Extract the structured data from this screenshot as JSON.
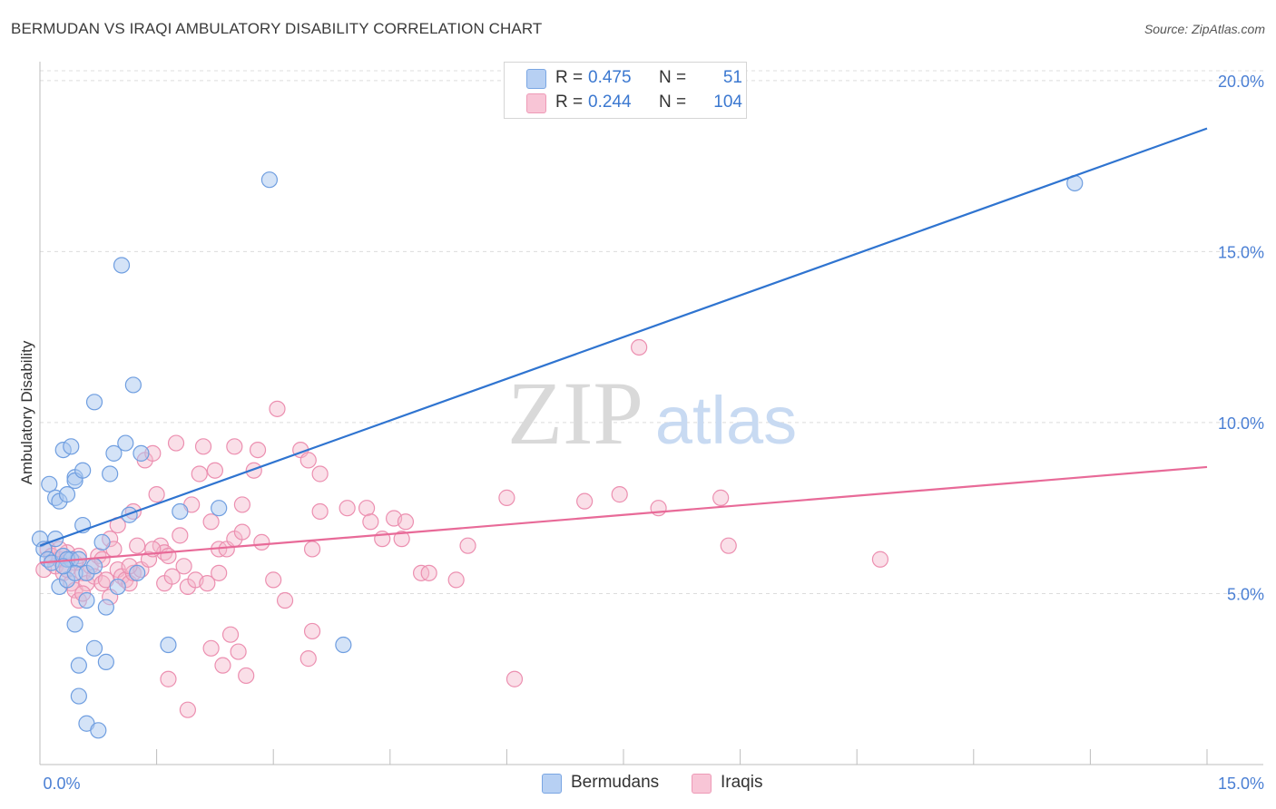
{
  "header": {
    "title": "BERMUDAN VS IRAQI AMBULATORY DISABILITY CORRELATION CHART",
    "source": "Source: ZipAtlas.com"
  },
  "watermark": {
    "zip": "ZIP",
    "atlas": "atlas"
  },
  "legend": {
    "rows": [
      {
        "r_label": "R =",
        "r_value": "0.475",
        "n_label": "N =",
        "n_value": "51"
      },
      {
        "r_label": "R =",
        "r_value": "0.244",
        "n_label": "N =",
        "n_value": "104"
      }
    ]
  },
  "bottom_legend": {
    "items": [
      "Bermudans",
      "Iraqis"
    ]
  },
  "colors": {
    "bermudan_fill": "#a9c7f0",
    "bermudan_stroke": "#6f9ee0",
    "bermudan_line": "#2f74d0",
    "iraqi_fill": "#f5b8cc",
    "iraqi_stroke": "#ec8fb0",
    "iraqi_line": "#e86a98",
    "tick_label": "#4a7fd4"
  },
  "chart_data": {
    "type": "scatter",
    "title": "BERMUDAN VS IRAQI AMBULATORY DISABILITY CORRELATION CHART",
    "xlabel": "",
    "ylabel": "Ambulatory Disability",
    "xlim": [
      0,
      15
    ],
    "ylim": [
      0,
      20.5
    ],
    "x_tick_labels": [
      {
        "v": 0,
        "t": "0.0%"
      },
      {
        "v": 15,
        "t": "15.0%"
      }
    ],
    "y_tick_labels": [
      {
        "v": 5,
        "t": "5.0%"
      },
      {
        "v": 10,
        "t": "10.0%"
      },
      {
        "v": 15,
        "t": "15.0%"
      },
      {
        "v": 20,
        "t": "20.0%"
      }
    ],
    "grid": true,
    "legend_position": "top-center",
    "series": [
      {
        "name": "Bermudans",
        "trend": [
          [
            0,
            6.4
          ],
          [
            15,
            18.6
          ]
        ],
        "points": [
          [
            0.0,
            6.6
          ],
          [
            0.05,
            6.3
          ],
          [
            0.1,
            6.0
          ],
          [
            0.15,
            5.9
          ],
          [
            0.2,
            6.6
          ],
          [
            0.25,
            5.2
          ],
          [
            0.3,
            6.1
          ],
          [
            0.12,
            8.2
          ],
          [
            0.2,
            7.8
          ],
          [
            0.25,
            7.7
          ],
          [
            0.3,
            9.2
          ],
          [
            0.35,
            7.9
          ],
          [
            0.35,
            5.4
          ],
          [
            0.4,
            6.0
          ],
          [
            0.35,
            6.0
          ],
          [
            0.45,
            8.4
          ],
          [
            0.45,
            8.3
          ],
          [
            0.4,
            9.3
          ],
          [
            0.5,
            6.0
          ],
          [
            0.55,
            7.0
          ],
          [
            0.45,
            5.6
          ],
          [
            0.45,
            4.1
          ],
          [
            0.5,
            2.0
          ],
          [
            0.5,
            2.9
          ],
          [
            0.55,
            8.6
          ],
          [
            0.6,
            5.6
          ],
          [
            0.6,
            4.8
          ],
          [
            0.6,
            1.2
          ],
          [
            0.7,
            3.4
          ],
          [
            0.7,
            10.6
          ],
          [
            0.75,
            1.0
          ],
          [
            0.8,
            6.5
          ],
          [
            0.85,
            4.6
          ],
          [
            0.85,
            3.0
          ],
          [
            0.9,
            8.5
          ],
          [
            0.95,
            9.1
          ],
          [
            1.0,
            5.2
          ],
          [
            1.05,
            14.6
          ],
          [
            1.1,
            9.4
          ],
          [
            1.15,
            7.3
          ],
          [
            1.2,
            11.1
          ],
          [
            1.25,
            5.6
          ],
          [
            1.3,
            9.1
          ],
          [
            1.65,
            3.5
          ],
          [
            1.8,
            7.4
          ],
          [
            2.3,
            7.5
          ],
          [
            2.95,
            17.1
          ],
          [
            3.9,
            3.5
          ],
          [
            13.3,
            17.0
          ],
          [
            0.3,
            5.8
          ],
          [
            0.7,
            5.8
          ]
        ]
      },
      {
        "name": "Iraqis",
        "trend": [
          [
            0,
            5.9
          ],
          [
            15,
            8.7
          ]
        ],
        "points": [
          [
            0.05,
            5.7
          ],
          [
            0.1,
            6.3
          ],
          [
            0.15,
            6.1
          ],
          [
            0.2,
            5.8
          ],
          [
            0.25,
            6.0
          ],
          [
            0.3,
            5.6
          ],
          [
            0.35,
            6.2
          ],
          [
            0.4,
            5.3
          ],
          [
            0.45,
            5.9
          ],
          [
            0.45,
            5.1
          ],
          [
            0.5,
            6.1
          ],
          [
            0.55,
            5.6
          ],
          [
            0.5,
            4.8
          ],
          [
            0.6,
            5.3
          ],
          [
            0.65,
            5.8
          ],
          [
            0.7,
            5.5
          ],
          [
            0.75,
            6.1
          ],
          [
            0.8,
            5.3
          ],
          [
            0.85,
            5.4
          ],
          [
            0.9,
            4.9
          ],
          [
            0.9,
            6.6
          ],
          [
            0.95,
            6.3
          ],
          [
            1.0,
            5.7
          ],
          [
            1.05,
            5.5
          ],
          [
            1.1,
            5.4
          ],
          [
            1.15,
            5.3
          ],
          [
            1.2,
            5.6
          ],
          [
            1.25,
            6.4
          ],
          [
            1.2,
            7.4
          ],
          [
            1.3,
            5.7
          ],
          [
            1.35,
            8.9
          ],
          [
            1.4,
            6.0
          ],
          [
            1.45,
            9.1
          ],
          [
            1.5,
            7.9
          ],
          [
            1.55,
            6.4
          ],
          [
            1.6,
            6.2
          ],
          [
            1.6,
            5.3
          ],
          [
            1.65,
            6.1
          ],
          [
            1.65,
            2.5
          ],
          [
            1.7,
            5.5
          ],
          [
            1.75,
            9.4
          ],
          [
            1.8,
            6.7
          ],
          [
            1.85,
            5.8
          ],
          [
            1.9,
            5.2
          ],
          [
            1.9,
            1.6
          ],
          [
            1.95,
            7.6
          ],
          [
            2.0,
            5.4
          ],
          [
            2.05,
            8.5
          ],
          [
            2.1,
            9.3
          ],
          [
            2.15,
            5.3
          ],
          [
            2.2,
            3.4
          ],
          [
            2.2,
            7.1
          ],
          [
            2.25,
            8.6
          ],
          [
            2.3,
            6.3
          ],
          [
            2.3,
            5.6
          ],
          [
            2.35,
            2.9
          ],
          [
            2.4,
            6.3
          ],
          [
            2.45,
            3.8
          ],
          [
            2.5,
            9.3
          ],
          [
            2.5,
            6.6
          ],
          [
            2.55,
            3.3
          ],
          [
            2.6,
            6.8
          ],
          [
            2.6,
            7.6
          ],
          [
            2.65,
            2.6
          ],
          [
            2.75,
            8.6
          ],
          [
            2.8,
            9.2
          ],
          [
            3.0,
            5.4
          ],
          [
            3.05,
            10.4
          ],
          [
            3.15,
            4.8
          ],
          [
            3.35,
            9.2
          ],
          [
            3.45,
            8.9
          ],
          [
            3.45,
            3.1
          ],
          [
            3.5,
            3.9
          ],
          [
            3.5,
            6.3
          ],
          [
            3.6,
            7.4
          ],
          [
            3.6,
            8.5
          ],
          [
            3.95,
            7.5
          ],
          [
            4.2,
            7.5
          ],
          [
            4.25,
            7.1
          ],
          [
            4.4,
            6.6
          ],
          [
            4.55,
            7.2
          ],
          [
            4.65,
            6.6
          ],
          [
            4.7,
            7.1
          ],
          [
            4.9,
            5.6
          ],
          [
            5.0,
            5.6
          ],
          [
            5.35,
            5.4
          ],
          [
            5.5,
            6.4
          ],
          [
            6.0,
            7.8
          ],
          [
            6.1,
            2.5
          ],
          [
            7.0,
            7.7
          ],
          [
            7.45,
            7.9
          ],
          [
            7.7,
            12.2
          ],
          [
            7.95,
            7.5
          ],
          [
            8.75,
            7.8
          ],
          [
            8.85,
            6.4
          ],
          [
            10.8,
            6.0
          ],
          [
            1.0,
            7.0
          ],
          [
            0.55,
            5.0
          ],
          [
            0.25,
            6.3
          ],
          [
            0.8,
            6.0
          ],
          [
            1.15,
            5.8
          ],
          [
            2.85,
            6.5
          ],
          [
            0.35,
            5.7
          ],
          [
            1.45,
            6.3
          ]
        ]
      }
    ]
  }
}
